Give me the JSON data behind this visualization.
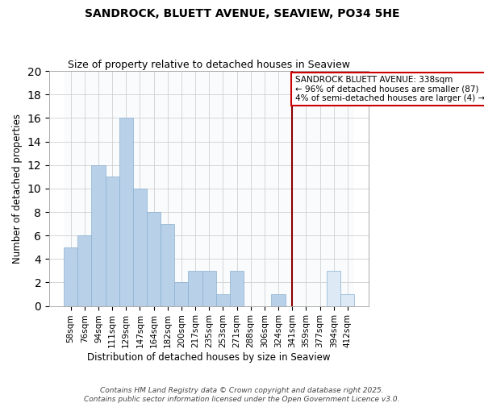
{
  "title": "SANDROCK, BLUETT AVENUE, SEAVIEW, PO34 5HE",
  "subtitle": "Size of property relative to detached houses in Seaview",
  "xlabel": "Distribution of detached houses by size in Seaview",
  "ylabel": "Number of detached properties",
  "bar_labels": [
    "58sqm",
    "76sqm",
    "94sqm",
    "111sqm",
    "129sqm",
    "147sqm",
    "164sqm",
    "182sqm",
    "200sqm",
    "217sqm",
    "235sqm",
    "253sqm",
    "271sqm",
    "288sqm",
    "306sqm",
    "324sqm",
    "341sqm",
    "359sqm",
    "377sqm",
    "394sqm",
    "412sqm"
  ],
  "bar_values": [
    5,
    6,
    12,
    11,
    16,
    10,
    8,
    7,
    2,
    3,
    3,
    1,
    3,
    0,
    0,
    1,
    0,
    0,
    0,
    3,
    1
  ],
  "bar_color_left": "#b8d0e8",
  "bar_color_right": "#ddeaf5",
  "vline_color": "#8b0000",
  "vline_position": 16.0,
  "split_index": 16,
  "annotation_line1": "SANDROCK BLUETT AVENUE: 338sqm",
  "annotation_line2": "← 96% of detached houses are smaller (87)",
  "annotation_line3": "4% of semi-detached houses are larger (4) →",
  "annotation_box_facecolor": "#ffffff",
  "annotation_box_edgecolor": "#cc0000",
  "property_size": 338,
  "ylim": [
    0,
    20
  ],
  "yticks": [
    0,
    2,
    4,
    6,
    8,
    10,
    12,
    14,
    16,
    18,
    20
  ],
  "footer_line1": "Contains HM Land Registry data © Crown copyright and database right 2025.",
  "footer_line2": "Contains public sector information licensed under the Open Government Licence v3.0.",
  "background_color": "#ffffff",
  "plot_bg_left": "#f0f4fa",
  "plot_bg_right": "#eef3f9",
  "grid_color": "#d0d0d0",
  "title_fontsize": 10,
  "subtitle_fontsize": 9,
  "axis_label_fontsize": 8.5,
  "tick_fontsize": 7.5,
  "annotation_fontsize": 7.5,
  "footer_fontsize": 6.5
}
